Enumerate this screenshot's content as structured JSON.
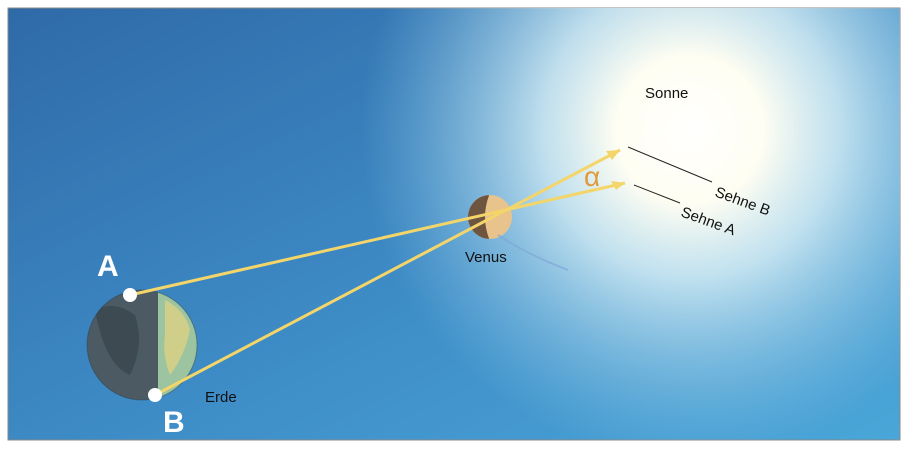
{
  "labels": {
    "sun": "Sonne",
    "venus": "Venus",
    "earth": "Erde",
    "point_a": "A",
    "point_b": "B",
    "angle": "α",
    "chord_b": "Sehne B",
    "chord_a": "Sehne A"
  }
}
